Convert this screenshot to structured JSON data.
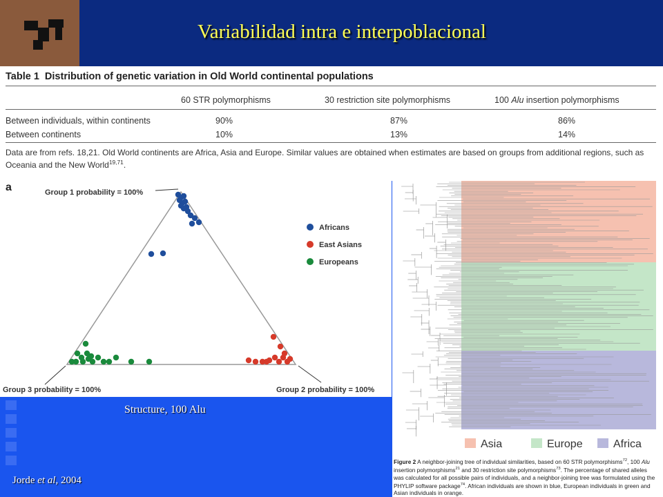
{
  "header": {
    "title": "Variabilidad intra e interpoblacional"
  },
  "table": {
    "number": "Table 1",
    "heading": "Distribution of genetic variation in Old World continental populations",
    "columns": [
      [
        {
          "text": "60 STR polymorphisms"
        }
      ],
      [
        {
          "text": "30 restriction site polymorphisms"
        }
      ],
      [
        {
          "text": "100 "
        },
        {
          "text": "Alu",
          "style": "italic"
        },
        {
          "text": " insertion polymorphisms"
        }
      ]
    ],
    "rows": [
      [
        "Between individuals, within continents",
        "90%",
        "87%",
        "86%"
      ],
      [
        "Between continents",
        "10%",
        "13%",
        "14%"
      ]
    ],
    "note": [
      [
        {
          "text": "Data are from refs. 18,21. Old World continents are Africa, Asia and Europe. Similar values are obtained when estimates are based on groups from additional regions, such as"
        }
      ],
      [
        {
          "text": "Oceania and the New World"
        },
        {
          "text": "19,71",
          "style": "sup"
        },
        {
          "text": "."
        }
      ]
    ]
  },
  "triangle": {
    "label": "a",
    "legend": [
      {
        "name": "Africans",
        "color": "#1f4e9c"
      },
      {
        "name": "East Asians",
        "color": "#d63a2a"
      },
      {
        "name": "Europeans",
        "color": "#1a8a3c"
      }
    ],
    "group1": "Group 1 probability = 100%",
    "group2": "Group 2 probability = 100%",
    "group3": "Group 3 probability = 100%"
  },
  "caption": "Structure, 100 Alu",
  "citation": [
    {
      "text": "Jorde "
    },
    {
      "text": "et al",
      "style": "italic"
    },
    {
      "text": ", 2004"
    }
  ],
  "tree": {
    "legend": [
      {
        "name": "Asia",
        "color": "#f6c1b0"
      },
      {
        "name": "Europe",
        "color": "#c4e6c8"
      },
      {
        "name": "Africa",
        "color": "#b8b8dc"
      }
    ],
    "caption": [
      [
        {
          "text": "Figure 2",
          "style": "bold"
        },
        {
          "text": " A neighbor-joining tree of individual similarities, based on 60 STR polymorphisms"
        },
        {
          "text": "72",
          "style": "sup"
        },
        {
          "text": ", 100 "
        },
        {
          "text": "Alu",
          "style": "italic"
        }
      ],
      [
        {
          "text": "insertion polymorphisms"
        },
        {
          "text": "21",
          "style": "sup"
        },
        {
          "text": " and 30 restriction site polymorphisms"
        },
        {
          "text": "73",
          "style": "sup"
        },
        {
          "text": ". The percentage of shared alleles"
        }
      ],
      [
        {
          "text": "was calculated for all possible pairs of individuals, and a neighbor-joining tree was formulated using the"
        }
      ],
      [
        {
          "text": "PHYLIP software package"
        },
        {
          "text": "74",
          "style": "sup"
        },
        {
          "text": ". African individuals are shown in blue, European individuals in green and"
        }
      ],
      [
        {
          "text": "Asian individuals in orange."
        }
      ]
    ]
  }
}
